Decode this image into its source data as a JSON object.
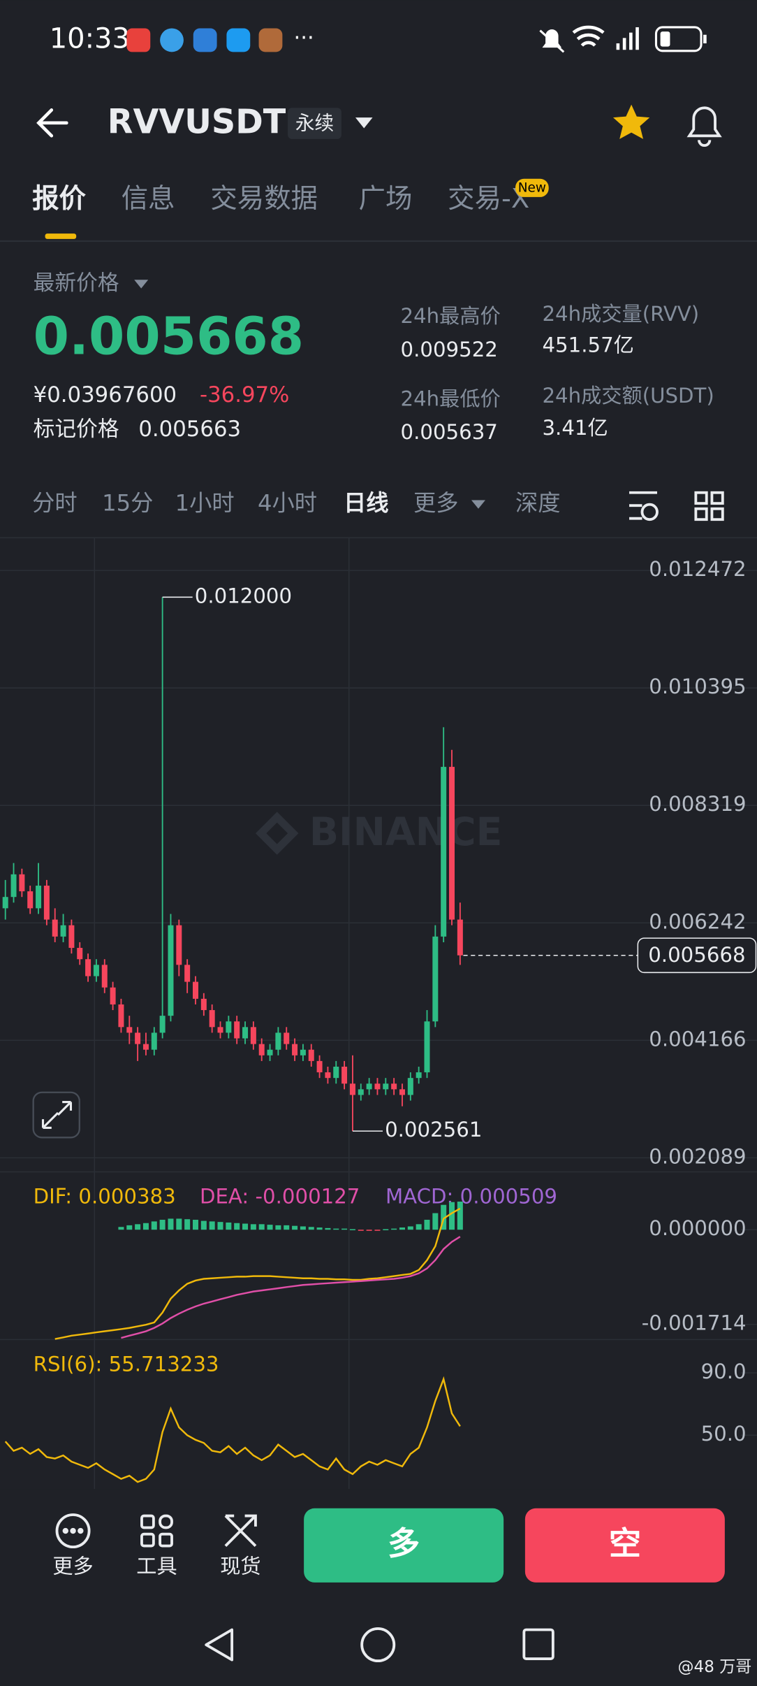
{
  "status_bar": {
    "time": "10:33"
  },
  "header": {
    "symbol": "RVVUSDT",
    "contract": "永续"
  },
  "tabs": [
    "报价",
    "信息",
    "交易数据",
    "广场",
    "交易-X"
  ],
  "tab_badge": "New",
  "price": {
    "label": "最新价格",
    "last": "0.005668",
    "cny": "¥0.03967600",
    "change": "-36.97%",
    "mark_label": "标记价格",
    "mark": "0.005663"
  },
  "stats": [
    {
      "label": "24h最高价",
      "value": "0.009522"
    },
    {
      "label": "24h最低价",
      "value": "0.005637"
    },
    {
      "label": "24h成交量(RVV)",
      "value": "451.57亿"
    },
    {
      "label": "24h成交额(USDT)",
      "value": "3.41亿"
    }
  ],
  "intervals": [
    "分时",
    "15分",
    "1小时",
    "4小时",
    "日线",
    "更多",
    "深度"
  ],
  "kline": {
    "watermark": "BINANCE",
    "up_color": "#2ebd85",
    "down_color": "#f6465d",
    "ylim": [
      0.00184,
      0.01305
    ],
    "yticks": [
      0.012472,
      0.010395,
      0.008319,
      0.006242,
      0.004166,
      0.002089
    ],
    "high_label": "0.012000",
    "low_label": "0.002561",
    "candles": [
      [
        0.0065,
        0.007,
        0.0063,
        0.0067
      ],
      [
        0.0067,
        0.0073,
        0.0066,
        0.0071
      ],
      [
        0.0071,
        0.0072,
        0.0067,
        0.0068
      ],
      [
        0.0068,
        0.0069,
        0.0064,
        0.0065
      ],
      [
        0.0065,
        0.0073,
        0.0064,
        0.0069
      ],
      [
        0.0069,
        0.007,
        0.0062,
        0.0063
      ],
      [
        0.0063,
        0.0065,
        0.0059,
        0.006
      ],
      [
        0.006,
        0.0064,
        0.0059,
        0.0062
      ],
      [
        0.0062,
        0.0063,
        0.0057,
        0.0058
      ],
      [
        0.0058,
        0.0059,
        0.0055,
        0.0056
      ],
      [
        0.0056,
        0.0057,
        0.0052,
        0.0053
      ],
      [
        0.0053,
        0.0056,
        0.0052,
        0.0055
      ],
      [
        0.0055,
        0.0056,
        0.005,
        0.0051
      ],
      [
        0.0051,
        0.0052,
        0.0047,
        0.0048
      ],
      [
        0.0048,
        0.0049,
        0.0043,
        0.0044
      ],
      [
        0.0044,
        0.0046,
        0.0041,
        0.0043
      ],
      [
        0.0043,
        0.0044,
        0.0038,
        0.0041
      ],
      [
        0.0041,
        0.0043,
        0.0039,
        0.004
      ],
      [
        0.004,
        0.0044,
        0.0039,
        0.0043
      ],
      [
        0.0043,
        0.012,
        0.0042,
        0.0046
      ],
      [
        0.0046,
        0.0064,
        0.0045,
        0.0062
      ],
      [
        0.0062,
        0.0063,
        0.0053,
        0.0055
      ],
      [
        0.0055,
        0.0056,
        0.005,
        0.0052
      ],
      [
        0.0052,
        0.0053,
        0.0048,
        0.0049
      ],
      [
        0.0049,
        0.005,
        0.0046,
        0.0047
      ],
      [
        0.0047,
        0.0048,
        0.0043,
        0.0044
      ],
      [
        0.0044,
        0.0045,
        0.0042,
        0.0043
      ],
      [
        0.0043,
        0.0046,
        0.0042,
        0.0045
      ],
      [
        0.0045,
        0.0046,
        0.0041,
        0.0042
      ],
      [
        0.0042,
        0.0045,
        0.0041,
        0.0044
      ],
      [
        0.0044,
        0.0045,
        0.004,
        0.0041
      ],
      [
        0.0041,
        0.0042,
        0.0038,
        0.0039
      ],
      [
        0.0039,
        0.0041,
        0.0038,
        0.004
      ],
      [
        0.004,
        0.0044,
        0.0039,
        0.0043
      ],
      [
        0.0043,
        0.0044,
        0.004,
        0.0041
      ],
      [
        0.0041,
        0.0042,
        0.0038,
        0.0039
      ],
      [
        0.0039,
        0.0041,
        0.0038,
        0.004
      ],
      [
        0.004,
        0.0041,
        0.0037,
        0.0038
      ],
      [
        0.0038,
        0.0039,
        0.0035,
        0.0036
      ],
      [
        0.0036,
        0.0037,
        0.0034,
        0.0035
      ],
      [
        0.0035,
        0.0038,
        0.0034,
        0.0037
      ],
      [
        0.0037,
        0.0038,
        0.0033,
        0.0034
      ],
      [
        0.0034,
        0.0039,
        0.002561,
        0.0032
      ],
      [
        0.0032,
        0.0034,
        0.0031,
        0.0033
      ],
      [
        0.0033,
        0.0035,
        0.0032,
        0.0034
      ],
      [
        0.0034,
        0.0035,
        0.0032,
        0.0033
      ],
      [
        0.0033,
        0.0035,
        0.0032,
        0.0034
      ],
      [
        0.0034,
        0.0035,
        0.0032,
        0.0033
      ],
      [
        0.0033,
        0.0034,
        0.003,
        0.0032
      ],
      [
        0.0032,
        0.0036,
        0.0031,
        0.0035
      ],
      [
        0.0035,
        0.0037,
        0.0034,
        0.0036
      ],
      [
        0.0036,
        0.0047,
        0.0035,
        0.0045
      ],
      [
        0.0045,
        0.0062,
        0.0044,
        0.006
      ],
      [
        0.006,
        0.0097,
        0.0059,
        0.009
      ],
      [
        0.009,
        0.0093,
        0.0062,
        0.0063
      ],
      [
        0.0063,
        0.0066,
        0.0055,
        0.005668
      ]
    ]
  },
  "macd": {
    "dif_label": "DIF: 0.000383",
    "dea_label": "DEA: -0.000127",
    "macd_label": "MACD: 0.000509",
    "dif_color": "#f0b90b",
    "dea_color": "#e04fa8",
    "macd_color": "#a066d3",
    "ylim": [
      -0.00197,
      0.00095
    ],
    "yticks": [
      {
        "value": 0,
        "label": "0.000000"
      },
      {
        "value": -0.001714,
        "label": "-0.001714"
      }
    ],
    "dif": [
      null,
      null,
      null,
      null,
      null,
      null,
      -0.00198,
      -0.00195,
      -0.00192,
      -0.0019,
      -0.00188,
      -0.00186,
      -0.00184,
      -0.00182,
      -0.0018,
      -0.00178,
      -0.00175,
      -0.00172,
      -0.00168,
      -0.0015,
      -0.00125,
      -0.0011,
      -0.00098,
      -0.00092,
      -0.00089,
      -0.00088,
      -0.00087,
      -0.00086,
      -0.00085,
      -0.00085,
      -0.00084,
      -0.00084,
      -0.00084,
      -0.00085,
      -0.00086,
      -0.00087,
      -0.00088,
      -0.00088,
      -0.00089,
      -0.00089,
      -0.0009,
      -0.0009,
      -0.00091,
      -0.00091,
      -0.00089,
      -0.00088,
      -0.00086,
      -0.00084,
      -0.00082,
      -0.0008,
      -0.00073,
      -0.00055,
      -0.0003,
      0.0002,
      0.0003,
      0.000383
    ],
    "dea": [
      null,
      null,
      null,
      null,
      null,
      null,
      null,
      null,
      null,
      null,
      null,
      null,
      null,
      null,
      -0.00196,
      -0.00192,
      -0.00188,
      -0.00184,
      -0.00178,
      -0.0017,
      -0.0016,
      -0.00152,
      -0.00145,
      -0.00139,
      -0.00134,
      -0.0013,
      -0.00126,
      -0.00122,
      -0.00118,
      -0.00115,
      -0.00112,
      -0.0011,
      -0.00108,
      -0.00106,
      -0.00104,
      -0.00102,
      -0.001,
      -0.00099,
      -0.00098,
      -0.00097,
      -0.00096,
      -0.00095,
      -0.00094,
      -0.00093,
      -0.00092,
      -0.00091,
      -0.0009,
      -0.00089,
      -0.00087,
      -0.00084,
      -0.00079,
      -0.0007,
      -0.00055,
      -0.00035,
      -0.00022,
      -0.000127
    ],
    "hist": [
      null,
      null,
      null,
      null,
      null,
      null,
      null,
      null,
      null,
      null,
      null,
      null,
      null,
      null,
      5e-05,
      8e-05,
      0.0001,
      0.00012,
      0.00015,
      0.00018,
      0.0002,
      0.0002,
      0.00019,
      0.00018,
      0.00016,
      0.00015,
      0.00014,
      0.00013,
      0.00012,
      0.00011,
      0.0001,
      0.0001,
      9e-05,
      8e-05,
      8e-05,
      7e-05,
      6e-05,
      5e-05,
      4e-05,
      3e-05,
      2e-05,
      2e-05,
      1e-05,
      -1e-05,
      -2e-05,
      -1e-05,
      1e-05,
      2e-05,
      4e-05,
      6e-05,
      0.0001,
      0.00018,
      0.0003,
      0.00045,
      0.0005,
      0.000509
    ]
  },
  "rsi": {
    "label": "RSI(6): 55.713233",
    "color": "#f0b90b",
    "ylim": [
      15.5,
      108.6
    ],
    "yticks": [
      {
        "value": 90,
        "label": "90.0"
      },
      {
        "value": 50,
        "label": "50.0"
      }
    ],
    "values": [
      46,
      40,
      42,
      38,
      41,
      36,
      35,
      37,
      33,
      31,
      29,
      32,
      28,
      25,
      22,
      24,
      20,
      22,
      28,
      52,
      67,
      55,
      50,
      47,
      45,
      40,
      39,
      43,
      38,
      42,
      37,
      34,
      37,
      44,
      40,
      36,
      38,
      34,
      30,
      28,
      35,
      28,
      25,
      30,
      33,
      31,
      34,
      32,
      30,
      38,
      42,
      55,
      72,
      86,
      64,
      55.713233
    ]
  },
  "bottom_bar": {
    "buttons": [
      "更多",
      "工具",
      "现货"
    ],
    "long": "多",
    "short": "空"
  },
  "credit": "@48 万哥"
}
